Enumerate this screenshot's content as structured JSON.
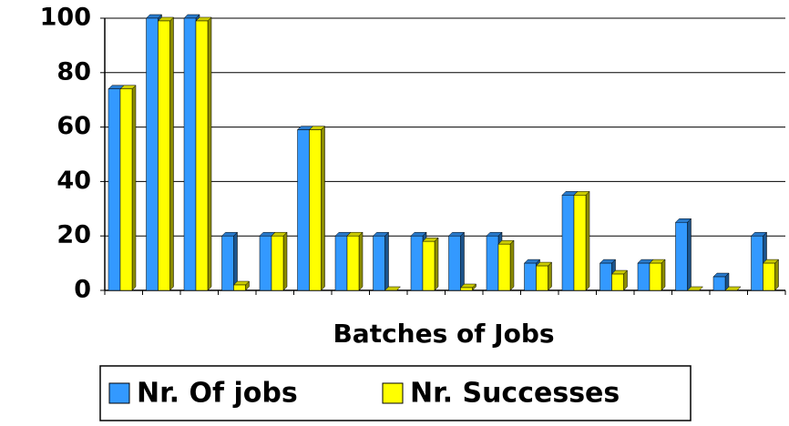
{
  "chart_data": {
    "type": "bar",
    "x_label": "Batches of Jobs",
    "categories": [
      null,
      null,
      null,
      null,
      null,
      null,
      null,
      null,
      null,
      null,
      null,
      null,
      null,
      null,
      null,
      null,
      null,
      null
    ],
    "series": [
      {
        "name": "Nr. Of jobs",
        "color": "#3399ff",
        "values": [
          74,
          100,
          100,
          20,
          20,
          59,
          20,
          20,
          20,
          20,
          20,
          10,
          35,
          10,
          10,
          25,
          5,
          20
        ]
      },
      {
        "name": "Nr. Successes",
        "color": "#ffff00",
        "values": [
          74,
          99,
          99,
          2,
          20,
          59,
          20,
          0,
          18,
          1,
          17,
          9,
          35,
          6,
          10,
          0,
          0,
          10
        ]
      }
    ],
    "ylim": [
      0,
      100
    ],
    "yticks": [
      0,
      20,
      40,
      60,
      80,
      100
    ],
    "grid": true,
    "legend": "bottom"
  }
}
